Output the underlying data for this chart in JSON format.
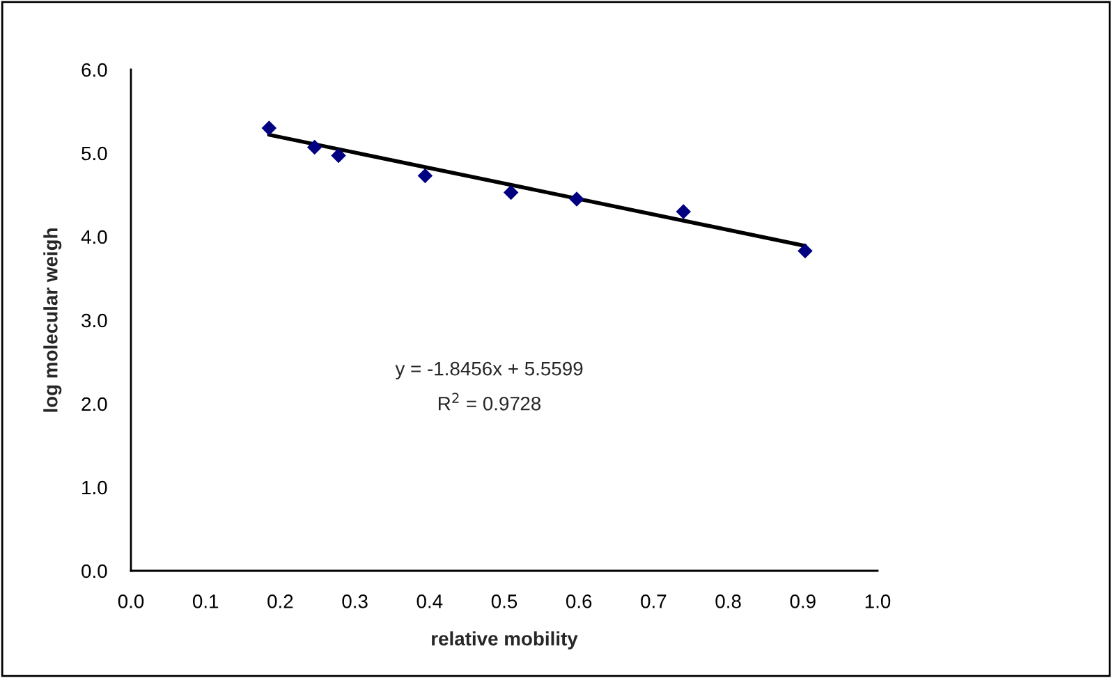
{
  "chart_data": {
    "type": "scatter",
    "xlabel": "relative mobility",
    "ylabel": "log molecular weigh",
    "xlim": [
      0,
      1.0
    ],
    "xticks": [
      {
        "value": 0,
        "label": "0.0"
      },
      0.1,
      0.2,
      0.3,
      0.4,
      0.5,
      0.6,
      0.7,
      0.8,
      0.9,
      {
        "value": 1.0,
        "label": "1.0"
      }
    ],
    "ylim": [
      0,
      6.0
    ],
    "yticks": [
      {
        "value": 0,
        "label": "0.0"
      },
      {
        "value": 1,
        "label": "1.0"
      },
      {
        "value": 2,
        "label": "2.0"
      },
      {
        "value": 3,
        "label": "3.0"
      },
      {
        "value": 4,
        "label": "4.0"
      },
      {
        "value": 5,
        "label": "5.0"
      },
      {
        "value": 6,
        "label": "6.0"
      }
    ],
    "grid": false,
    "marker": "diamond",
    "series": [
      {
        "color": "#000080",
        "x": [
          0.185,
          0.246,
          0.278,
          0.394,
          0.509,
          0.597,
          0.74,
          0.903
        ],
        "values": [
          5.3,
          5.07,
          4.97,
          4.73,
          4.53,
          4.45,
          4.3,
          3.83
        ]
      },
      {
        "type": "line",
        "color": "#000000",
        "x": [
          0.185,
          0.903
        ],
        "values": [
          5.22,
          3.89
        ],
        "marker": "none",
        "line_style": "solid"
      }
    ],
    "annotations": [
      "y = -1.8456x + 5.5599",
      "R$^{2}$ = 0.9728"
    ]
  }
}
